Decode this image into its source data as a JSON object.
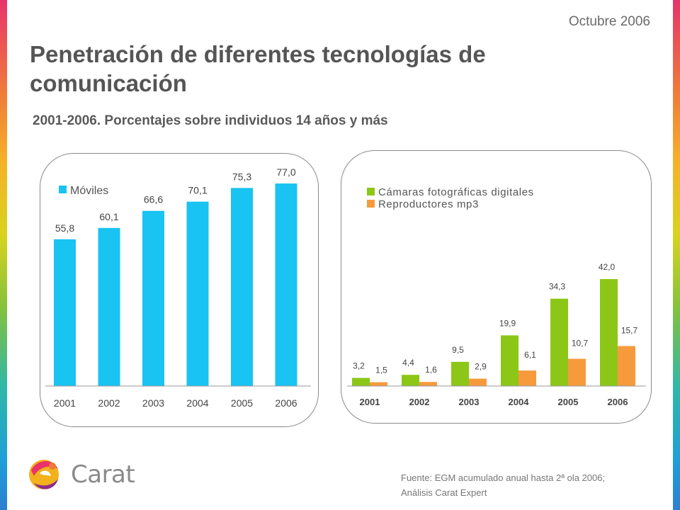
{
  "header": {
    "date": "Octubre 2006",
    "title": "Penetración de diferentes tecnologías de comunicación",
    "subtitle": "2001-2006.  Porcentajes sobre individuos 14 años y más"
  },
  "footer": {
    "source_line1": "Fuente: EGM acumulado anual hasta 2ª ola 2006;",
    "source_line2": "Análisis Carat Expert",
    "logo_text": "Carat"
  },
  "colors": {
    "moviles": "#19c3f2",
    "camaras": "#8cc717",
    "mp3": "#f79a3c"
  },
  "chart_data": [
    {
      "type": "bar",
      "categories": [
        "2001",
        "2002",
        "2003",
        "2004",
        "2005",
        "2006"
      ],
      "series": [
        {
          "name": "Móviles",
          "values": [
            55.8,
            60.1,
            66.6,
            70.1,
            75.3,
            77.0
          ],
          "labels": [
            "55,8",
            "60,1",
            "66,6",
            "70,1",
            "75,3",
            "77,0"
          ]
        }
      ],
      "ylim": [
        0,
        100
      ],
      "grid": false,
      "legend": "top-left"
    },
    {
      "type": "bar",
      "categories": [
        "2001",
        "2002",
        "2003",
        "2004",
        "2005",
        "2006"
      ],
      "series": [
        {
          "name": "Cámaras fotográficas digitales",
          "values": [
            3.2,
            4.4,
            9.5,
            19.9,
            34.3,
            42.0
          ],
          "labels": [
            "3,2",
            "4,4",
            "9,5",
            "19,9",
            "34,3",
            "42,0"
          ]
        },
        {
          "name": "Reproductores mp3",
          "values": [
            1.5,
            1.6,
            2.9,
            6.1,
            10.7,
            15.7
          ],
          "labels": [
            "1,5",
            "1,6",
            "2,9",
            "6,1",
            "10,7",
            "15,7"
          ]
        }
      ],
      "ylim": [
        0,
        50
      ],
      "grid": false,
      "legend": "top-left"
    }
  ]
}
